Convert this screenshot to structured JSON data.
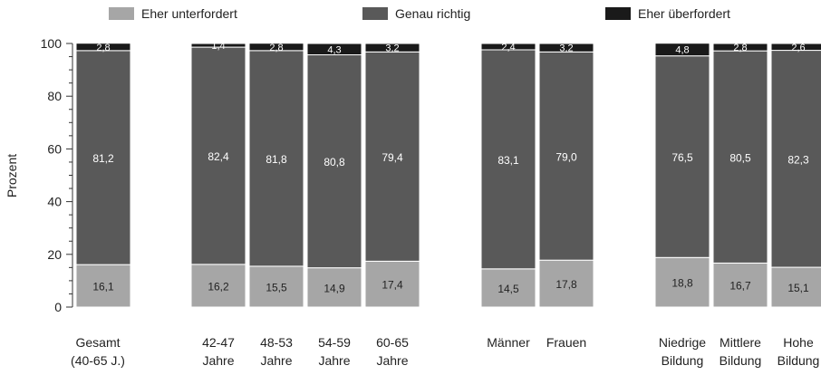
{
  "chart_data": {
    "type": "bar",
    "stacked": true,
    "ylabel": "Prozent",
    "ylim": [
      0,
      100
    ],
    "yticks": [
      0,
      20,
      40,
      60,
      80,
      100
    ],
    "legend_position": "top",
    "categories": [
      [
        "Gesamt",
        "(40-65 J.)"
      ],
      [
        "42-47",
        "Jahre"
      ],
      [
        "48-53",
        "Jahre"
      ],
      [
        "54-59",
        "Jahre"
      ],
      [
        "60-65",
        "Jahre"
      ],
      [
        "Männer"
      ],
      [
        "Frauen"
      ],
      [
        "Niedrige",
        "Bildung"
      ],
      [
        "Mittlere",
        "Bildung"
      ],
      [
        "Hohe",
        "Bildung"
      ]
    ],
    "series": [
      {
        "name": "Eher unterfordert",
        "color": "#a6a6a6",
        "values": [
          16.1,
          16.2,
          15.5,
          14.9,
          17.4,
          14.5,
          17.8,
          18.8,
          16.7,
          15.1
        ],
        "labels": [
          "16,1",
          "16,2",
          "15,5",
          "14,9",
          "17,4",
          "14,5",
          "17,8",
          "18,8",
          "16,7",
          "15,1"
        ]
      },
      {
        "name": "Genau richtig",
        "color": "#595959",
        "values": [
          81.2,
          82.4,
          81.8,
          80.8,
          79.4,
          83.1,
          79.0,
          76.5,
          80.5,
          82.3
        ],
        "labels": [
          "81,2",
          "82,4",
          "81,8",
          "80,8",
          "79,4",
          "83,1",
          "79,0",
          "76,5",
          "80,5",
          "82,3"
        ]
      },
      {
        "name": "Eher überfordert",
        "color": "#1a1a1a",
        "values": [
          2.8,
          1.4,
          2.8,
          4.3,
          3.2,
          2.4,
          3.2,
          4.8,
          2.8,
          2.6
        ],
        "labels": [
          "2,8",
          "1,4",
          "2,8",
          "4,3",
          "3,2",
          "2,4",
          "3,2",
          "4,8",
          "2,8",
          "2,6"
        ]
      }
    ]
  }
}
